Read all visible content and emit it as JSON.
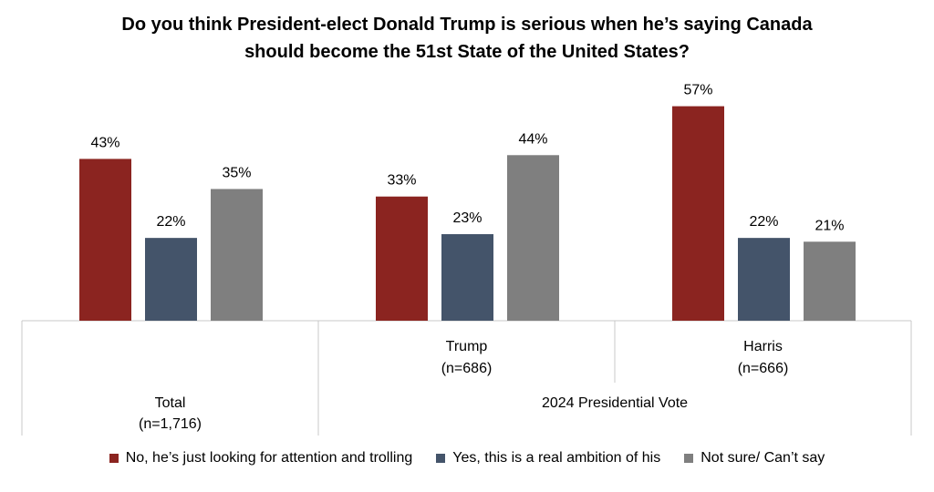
{
  "chart_data": {
    "type": "bar",
    "title_lines": [
      "Do you think President-elect Donald Trump is serious when he’s saying Canada",
      "should become the 51st State of the United States?"
    ],
    "groups": [
      {
        "label": "Total",
        "n": "(n=1,716)"
      },
      {
        "label": "Trump",
        "n": "(n=686)"
      },
      {
        "label": "Harris",
        "n": "(n=666)"
      }
    ],
    "super_group_label": "2024 Presidential Vote",
    "series": [
      {
        "name": "No, he’s just looking for attention and trolling",
        "color": "#8B2420",
        "values": [
          43,
          33,
          57
        ]
      },
      {
        "name": "Yes, this is a real ambition of his",
        "color": "#44546A",
        "values": [
          22,
          23,
          22
        ]
      },
      {
        "name": "Not sure/ Can’t say",
        "color": "#7F7F7F",
        "values": [
          35,
          44,
          21
        ]
      }
    ],
    "value_suffix": "%",
    "ylim": [
      0,
      100
    ],
    "grid": false,
    "legend_position": "bottom"
  }
}
